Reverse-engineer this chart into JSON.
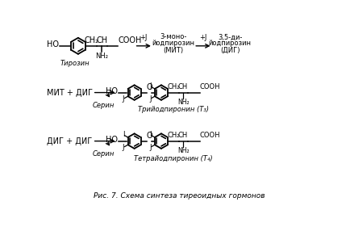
{
  "caption": "Рис. 7. Схема синтеза тиреоидных гормонов",
  "background": "#ffffff",
  "figsize": [
    4.34,
    2.81
  ],
  "dpi": 100,
  "top": {
    "tyrosine": "Тирозин",
    "mit": "3-моно-\nйодпирозин\n(МИТ)",
    "dit": "3,5-ди-\nйодпирозин\n(ДИГ)",
    "j1": "+J",
    "j2": "+J"
  },
  "row2": {
    "left": "МИТ + ДИГ",
    "serine": "Серин",
    "product": "Трийодпиронин (Т₃)"
  },
  "row3": {
    "left": "ДИГ + ДИГ",
    "serine": "Серин",
    "product": "Тетрайодпиронин (Т₄)"
  }
}
